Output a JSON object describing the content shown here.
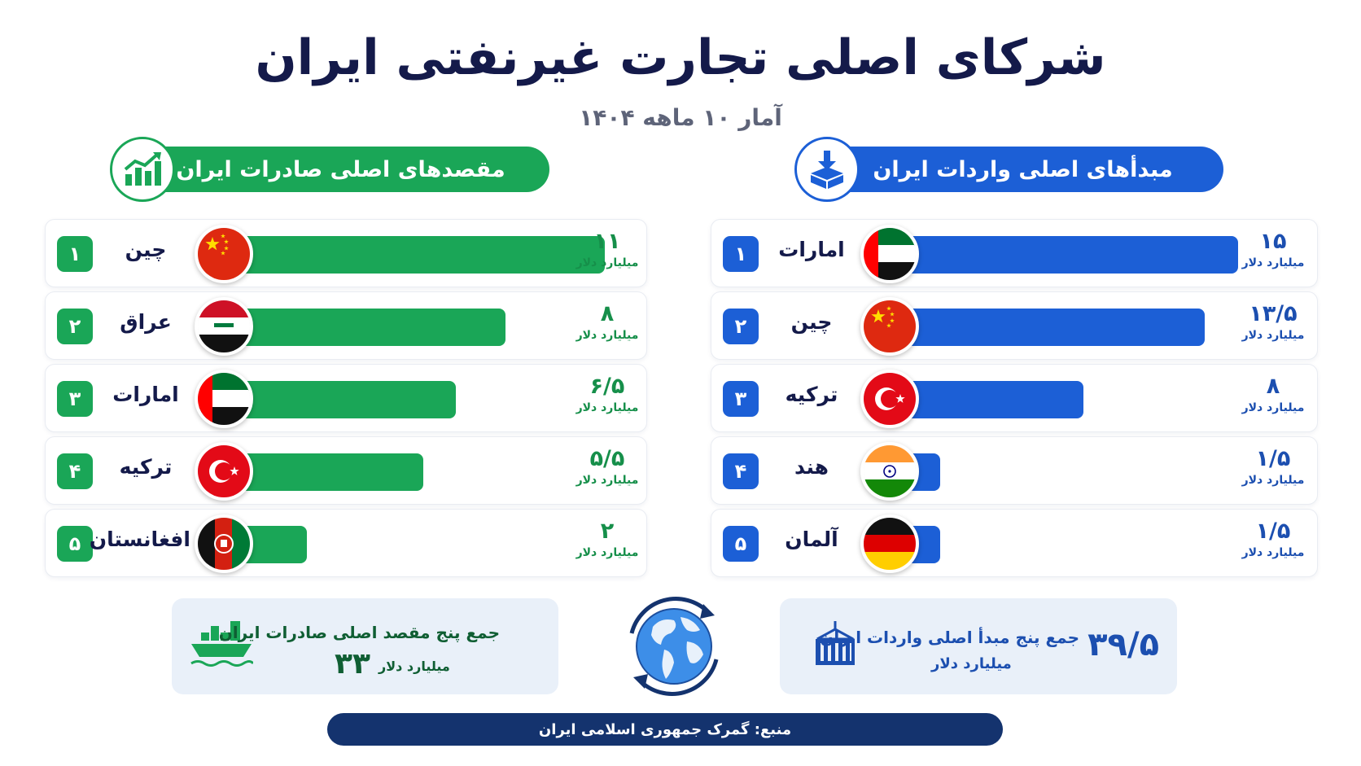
{
  "title": "شرکای اصلی تجارت غیرنفتی ایران",
  "subtitle": "آمار ۱۰ ماهه ۱۴۰۴",
  "colors": {
    "exports": "#1aa657",
    "imports": "#1c5fd6",
    "navy": "#14336e"
  },
  "exports": {
    "header": "مقصدهای اصلی صادرات ایران",
    "icon": "chart-up-icon",
    "rows": [
      {
        "rank": "۱",
        "country": "چین",
        "value_label": "۱۱",
        "unit": "میلیارد دلار",
        "flag": "china-flag"
      },
      {
        "rank": "۲",
        "country": "عراق",
        "value_label": "۸",
        "unit": "میلیارد دلار",
        "flag": "iraq-flag"
      },
      {
        "rank": "۳",
        "country": "امارات",
        "value_label": "۶/۵",
        "unit": "میلیارد دلار",
        "flag": "uae-flag"
      },
      {
        "rank": "۴",
        "country": "ترکیه",
        "value_label": "۵/۵",
        "unit": "میلیارد دلار",
        "flag": "turkey-flag"
      },
      {
        "rank": "۵",
        "country": "افغانستان",
        "value_label": "۲",
        "unit": "میلیارد دلار",
        "flag": "afghanistan-flag"
      }
    ],
    "total_label": "جمع پنج مقصد اصلی صادرات ایران",
    "total_value": "۳۳",
    "total_unit": "میلیارد دلار"
  },
  "imports": {
    "header": "مبدأهای اصلی واردات ایران",
    "icon": "box-download-icon",
    "rows": [
      {
        "rank": "۱",
        "country": "امارات",
        "value_label": "۱۵",
        "unit": "میلیارد دلار",
        "flag": "uae-flag"
      },
      {
        "rank": "۲",
        "country": "چین",
        "value_label": "۱۳/۵",
        "unit": "میلیارد دلار",
        "flag": "china-flag"
      },
      {
        "rank": "۳",
        "country": "ترکیه",
        "value_label": "۸",
        "unit": "میلیارد دلار",
        "flag": "turkey-flag"
      },
      {
        "rank": "۴",
        "country": "هند",
        "value_label": "۱/۵",
        "unit": "میلیارد دلار",
        "flag": "india-flag"
      },
      {
        "rank": "۵",
        "country": "آلمان",
        "value_label": "۱/۵",
        "unit": "میلیارد دلار",
        "flag": "germany-flag"
      }
    ],
    "total_label": "جمع پنج مبدأ اصلی واردات ایران",
    "total_value": "۳۹/۵",
    "total_unit": "میلیارد دلار"
  },
  "source": "منبع: گمرک جمهوری اسلامی ایران",
  "chart_data": [
    {
      "type": "bar",
      "title": "مقصدهای اصلی صادرات ایران",
      "categories": [
        "چین",
        "عراق",
        "امارات",
        "ترکیه",
        "افغانستان"
      ],
      "values": [
        11,
        8,
        6.5,
        5.5,
        2
      ],
      "ylabel": "میلیارد دلار"
    },
    {
      "type": "bar",
      "title": "مبدأهای اصلی واردات ایران",
      "categories": [
        "امارات",
        "چین",
        "ترکیه",
        "هند",
        "آلمان"
      ],
      "values": [
        15,
        13.5,
        8,
        1.5,
        1.5
      ],
      "ylabel": "میلیارد دلار"
    }
  ]
}
